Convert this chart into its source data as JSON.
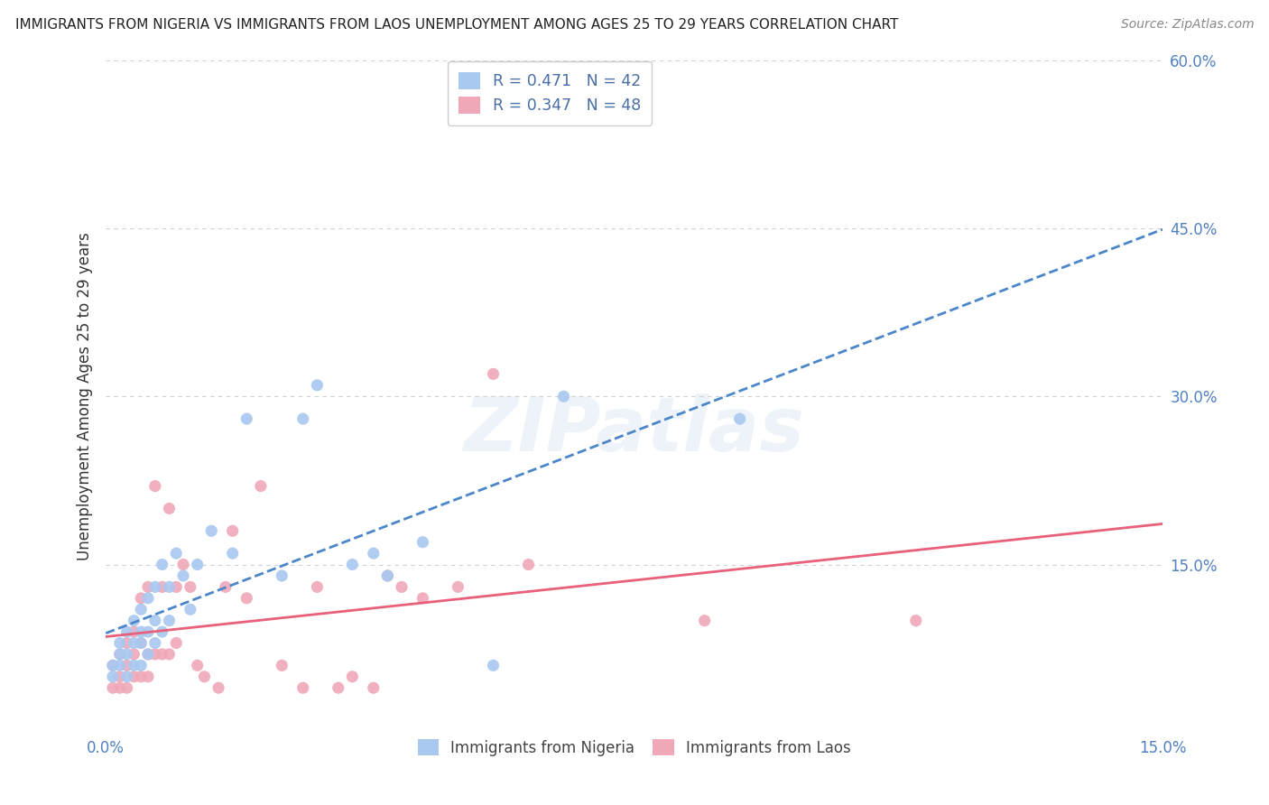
{
  "title": "IMMIGRANTS FROM NIGERIA VS IMMIGRANTS FROM LAOS UNEMPLOYMENT AMONG AGES 25 TO 29 YEARS CORRELATION CHART",
  "source": "Source: ZipAtlas.com",
  "ylabel": "Unemployment Among Ages 25 to 29 years",
  "xlim": [
    0.0,
    0.15
  ],
  "ylim": [
    0.0,
    0.6
  ],
  "xticks": [
    0.0,
    0.03,
    0.06,
    0.09,
    0.12,
    0.15
  ],
  "xticklabels": [
    "0.0%",
    "",
    "",
    "",
    "",
    "15.0%"
  ],
  "yticks": [
    0.0,
    0.15,
    0.3,
    0.45,
    0.6
  ],
  "yticklabels": [
    "",
    "15.0%",
    "30.0%",
    "45.0%",
    "60.0%"
  ],
  "nigeria_R": 0.471,
  "nigeria_N": 42,
  "laos_R": 0.347,
  "laos_N": 48,
  "nigeria_color": "#a8c8f0",
  "laos_color": "#f0a8b8",
  "nigeria_line_color": "#4a86c8",
  "laos_line_color": "#e8607a",
  "nigeria_line_style": "--",
  "laos_line_style": "-",
  "background_color": "#ffffff",
  "grid_color": "#d0d0d0",
  "watermark": "ZIPatlas",
  "tick_color": "#5080c0",
  "legend_text_color": "#4a6fa5",
  "nigeria_x": [
    0.001,
    0.001,
    0.002,
    0.002,
    0.002,
    0.003,
    0.003,
    0.003,
    0.004,
    0.004,
    0.004,
    0.005,
    0.005,
    0.005,
    0.005,
    0.006,
    0.006,
    0.006,
    0.007,
    0.007,
    0.007,
    0.008,
    0.008,
    0.009,
    0.009,
    0.01,
    0.011,
    0.012,
    0.013,
    0.015,
    0.018,
    0.02,
    0.025,
    0.028,
    0.03,
    0.035,
    0.038,
    0.04,
    0.045,
    0.055,
    0.065,
    0.09
  ],
  "nigeria_y": [
    0.05,
    0.06,
    0.06,
    0.07,
    0.08,
    0.05,
    0.07,
    0.09,
    0.06,
    0.08,
    0.1,
    0.06,
    0.08,
    0.09,
    0.11,
    0.07,
    0.09,
    0.12,
    0.08,
    0.1,
    0.13,
    0.09,
    0.15,
    0.1,
    0.13,
    0.16,
    0.14,
    0.11,
    0.15,
    0.18,
    0.16,
    0.28,
    0.14,
    0.28,
    0.31,
    0.15,
    0.16,
    0.14,
    0.17,
    0.06,
    0.3,
    0.28
  ],
  "laos_x": [
    0.001,
    0.001,
    0.002,
    0.002,
    0.002,
    0.003,
    0.003,
    0.003,
    0.004,
    0.004,
    0.004,
    0.005,
    0.005,
    0.005,
    0.006,
    0.006,
    0.006,
    0.007,
    0.007,
    0.008,
    0.008,
    0.009,
    0.009,
    0.01,
    0.01,
    0.011,
    0.012,
    0.013,
    0.014,
    0.016,
    0.017,
    0.018,
    0.02,
    0.022,
    0.025,
    0.028,
    0.03,
    0.033,
    0.035,
    0.038,
    0.04,
    0.042,
    0.045,
    0.05,
    0.055,
    0.06,
    0.085,
    0.115
  ],
  "laos_y": [
    0.04,
    0.06,
    0.04,
    0.05,
    0.07,
    0.04,
    0.06,
    0.08,
    0.05,
    0.07,
    0.09,
    0.05,
    0.08,
    0.12,
    0.05,
    0.07,
    0.13,
    0.07,
    0.22,
    0.07,
    0.13,
    0.07,
    0.2,
    0.08,
    0.13,
    0.15,
    0.13,
    0.06,
    0.05,
    0.04,
    0.13,
    0.18,
    0.12,
    0.22,
    0.06,
    0.04,
    0.13,
    0.04,
    0.05,
    0.04,
    0.14,
    0.13,
    0.12,
    0.13,
    0.32,
    0.15,
    0.1,
    0.1
  ]
}
